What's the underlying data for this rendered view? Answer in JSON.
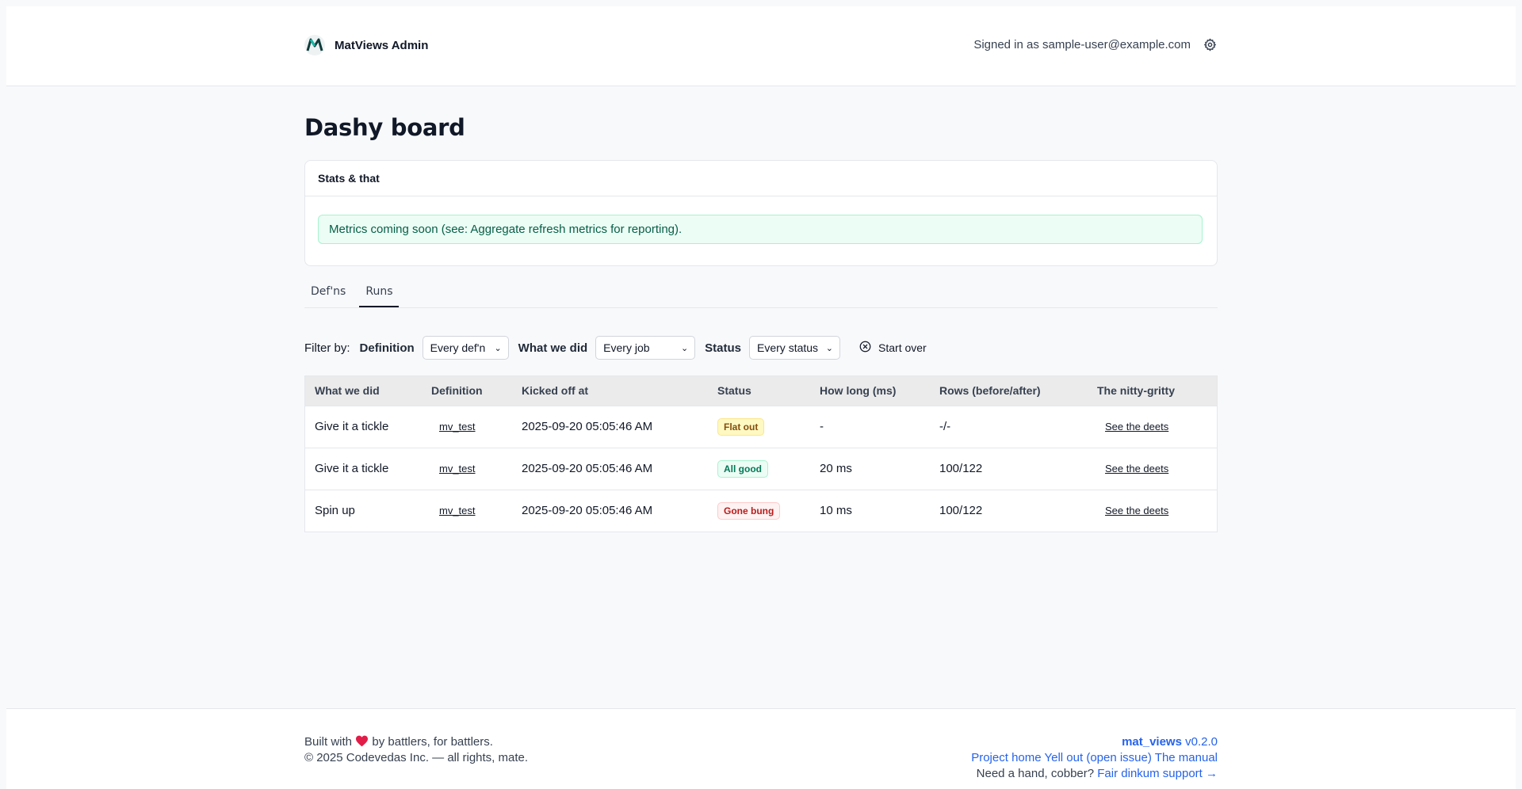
{
  "header": {
    "app_name": "MatViews Admin",
    "signed_in_text": "Signed in as sample-user@example.com"
  },
  "page": {
    "title": "Dashy board"
  },
  "stats_card": {
    "title": "Stats & that",
    "notice": "Metrics coming soon (see: Aggregate refresh metrics for reporting)."
  },
  "tabs": [
    {
      "label": "Def'ns",
      "active": false
    },
    {
      "label": "Runs",
      "active": true
    }
  ],
  "filters": {
    "prefix": "Filter by:",
    "definition_label": "Definition",
    "definition_value": "Every def'n",
    "action_label": "What we did",
    "action_value": "Every job",
    "status_label": "Status",
    "status_value": "Every status",
    "reset_label": "Start over"
  },
  "table": {
    "columns": [
      "What we did",
      "Definition",
      "Kicked off at",
      "Status",
      "How long (ms)",
      "Rows (before/after)",
      "The nitty-gritty"
    ],
    "rows": [
      {
        "action": "Give it a tickle",
        "definition": "mv_test",
        "started": "2025-09-20 05:05:46 AM",
        "status": "Flat out",
        "status_kind": "warn",
        "duration": "-",
        "rows": "-/-",
        "details": "See the deets"
      },
      {
        "action": "Give it a tickle",
        "definition": "mv_test",
        "started": "2025-09-20 05:05:46 AM",
        "status": "All good",
        "status_kind": "ok",
        "duration": "20 ms",
        "rows": "100/122",
        "details": "See the deets"
      },
      {
        "action": "Spin up",
        "definition": "mv_test",
        "started": "2025-09-20 05:05:46 AM",
        "status": "Gone bung",
        "status_kind": "err",
        "duration": "10 ms",
        "rows": "100/122",
        "details": "See the deets"
      }
    ]
  },
  "footer": {
    "built_pre": "Built with",
    "built_post": "by battlers, for battlers.",
    "copyright": "© 2025 Codevedas Inc. — all rights, mate.",
    "product_name": "mat_views",
    "version": "v0.2.0",
    "links": [
      "Project home",
      "Yell out (open issue)",
      "The manual"
    ],
    "help_text": "Need a hand, cobber?",
    "support_link": "Fair dinkum support →"
  },
  "colors": {
    "link": "#2563eb",
    "warn": "#854d0e",
    "ok": "#047857",
    "err": "#b91c1c",
    "heart": "#e11d48"
  },
  "icons": {
    "logo": "m-logo-icon",
    "settings": "gear-icon",
    "reset": "circle-x-icon",
    "heart": "heart-icon"
  }
}
